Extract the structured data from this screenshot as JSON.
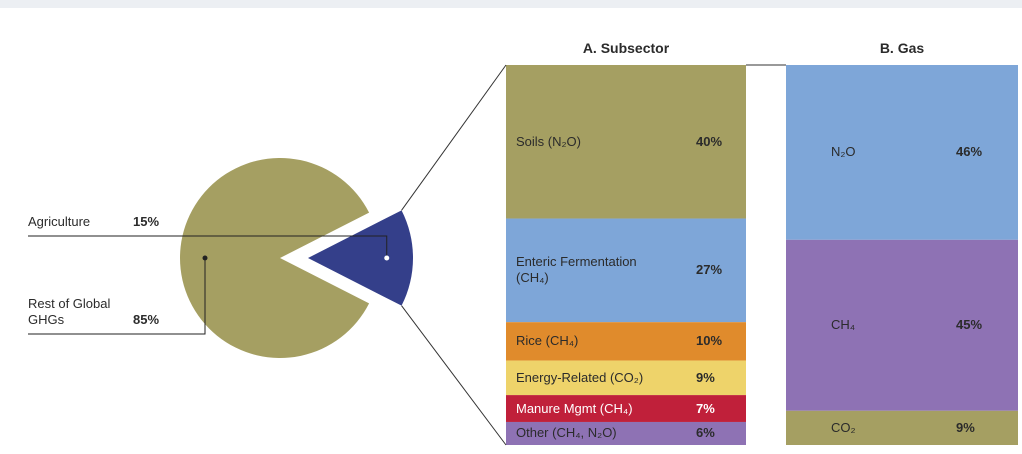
{
  "chart_data": [
    {
      "type": "pie",
      "categories": [
        "Agriculture",
        "Rest of Global GHGs"
      ],
      "values": [
        15,
        85
      ],
      "value_labels": [
        "15%",
        "85%"
      ],
      "colors": [
        "#343f8a",
        "#a59f62"
      ]
    },
    {
      "type": "stacked-bar",
      "title": "A. Subsector",
      "categories": [
        "Soils (N₂O)",
        "Enteric Fermentation (CH₄)",
        "Rice (CH₄)",
        "Energy-Related (CO₂)",
        "Manure Mgmt (CH₄)",
        "Other (CH₄, N₂O)"
      ],
      "values": [
        40,
        27,
        10,
        9,
        7,
        6
      ],
      "value_labels": [
        "40%",
        "27%",
        "10%",
        "9%",
        "7%",
        "6%"
      ],
      "colors": [
        "#a59f62",
        "#7ea6d8",
        "#e08b2c",
        "#eed36a",
        "#c0203a",
        "#8e72b4"
      ]
    },
    {
      "type": "stacked-bar",
      "title": "B. Gas",
      "categories": [
        "N₂O",
        "CH₄",
        "CO₂"
      ],
      "values": [
        46,
        45,
        9
      ],
      "value_labels": [
        "46%",
        "45%",
        "9%"
      ],
      "colors": [
        "#7ea6d8",
        "#8e72b4",
        "#a59f62"
      ]
    }
  ]
}
